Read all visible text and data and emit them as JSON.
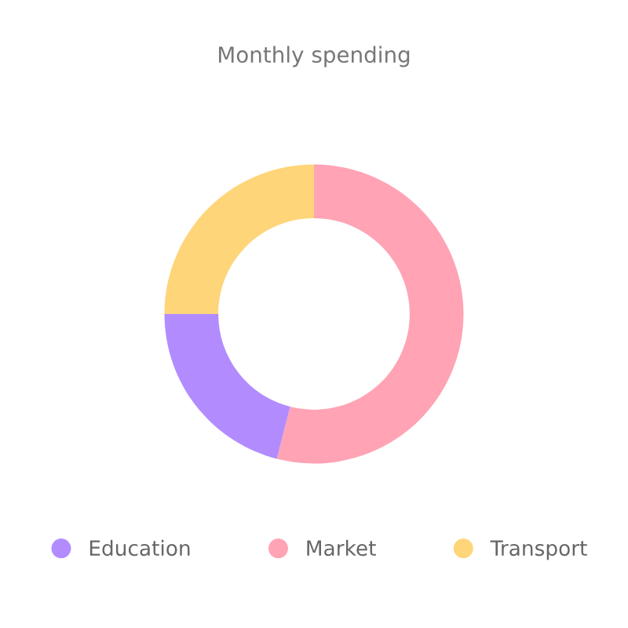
{
  "chart_data": {
    "type": "donut",
    "title": "Monthly spending",
    "categories": [
      "Market",
      "Education",
      "Transport"
    ],
    "values": [
      54,
      21,
      25
    ],
    "colors": [
      "#ffa3b5",
      "#b28cff",
      "#ffd57a"
    ],
    "legend": "bottom"
  }
}
